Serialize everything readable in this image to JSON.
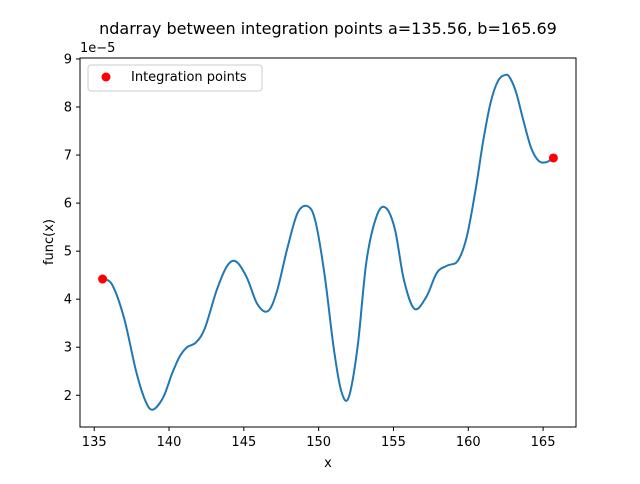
{
  "chart_data": {
    "type": "line",
    "title": "ndarray between integration points a=135.56, b=165.69",
    "xlabel": "x",
    "ylabel": "func(x)",
    "y_offset_label": "1e−5",
    "y_scale": 1e-05,
    "xlim": [
      134.05,
      167.2
    ],
    "ylim": [
      1.34,
      9.02
    ],
    "x_ticks": [
      135,
      140,
      145,
      150,
      155,
      160,
      165
    ],
    "x_tick_labels": [
      "135",
      "140",
      "145",
      "150",
      "155",
      "160",
      "165"
    ],
    "y_ticks": [
      2,
      3,
      4,
      5,
      6,
      7,
      8,
      9
    ],
    "y_tick_labels": [
      "2",
      "3",
      "4",
      "5",
      "6",
      "7",
      "8",
      "9"
    ],
    "grid": false,
    "legend": {
      "position": "top-left",
      "entries": [
        {
          "label": "Integration points",
          "color": "#ff0000",
          "marker": "circle"
        }
      ]
    },
    "series": [
      {
        "color": "#1f77b4",
        "x": [
          135.56,
          136.2,
          137.0,
          137.8,
          138.4,
          138.9,
          139.6,
          140.2,
          140.7,
          141.2,
          141.8,
          142.4,
          143.2,
          143.9,
          144.5,
          145.2,
          145.9,
          146.6,
          147.2,
          147.9,
          148.6,
          149.3,
          149.8,
          150.4,
          151.0,
          151.5,
          152.0,
          152.6,
          153.2,
          153.9,
          154.5,
          155.1,
          155.7,
          156.4,
          157.2,
          157.9,
          158.6,
          159.3,
          159.9,
          160.5,
          161.0,
          161.5,
          162.0,
          162.5,
          162.8,
          163.2,
          163.7,
          164.2,
          164.7,
          165.2,
          165.69
        ],
        "y": [
          4.42,
          4.3,
          3.6,
          2.5,
          1.9,
          1.7,
          1.95,
          2.45,
          2.8,
          3.0,
          3.1,
          3.4,
          4.2,
          4.7,
          4.78,
          4.45,
          3.9,
          3.75,
          4.15,
          5.05,
          5.8,
          5.93,
          5.6,
          4.5,
          3.0,
          2.1,
          1.95,
          3.0,
          4.8,
          5.75,
          5.9,
          5.45,
          4.4,
          3.8,
          4.05,
          4.55,
          4.7,
          4.8,
          5.3,
          6.3,
          7.3,
          8.1,
          8.55,
          8.67,
          8.6,
          8.3,
          7.7,
          7.15,
          6.88,
          6.85,
          6.94
        ]
      }
    ],
    "points": {
      "color": "#ff0000",
      "x": [
        135.56,
        165.69
      ],
      "y": [
        4.42,
        6.94
      ]
    }
  }
}
